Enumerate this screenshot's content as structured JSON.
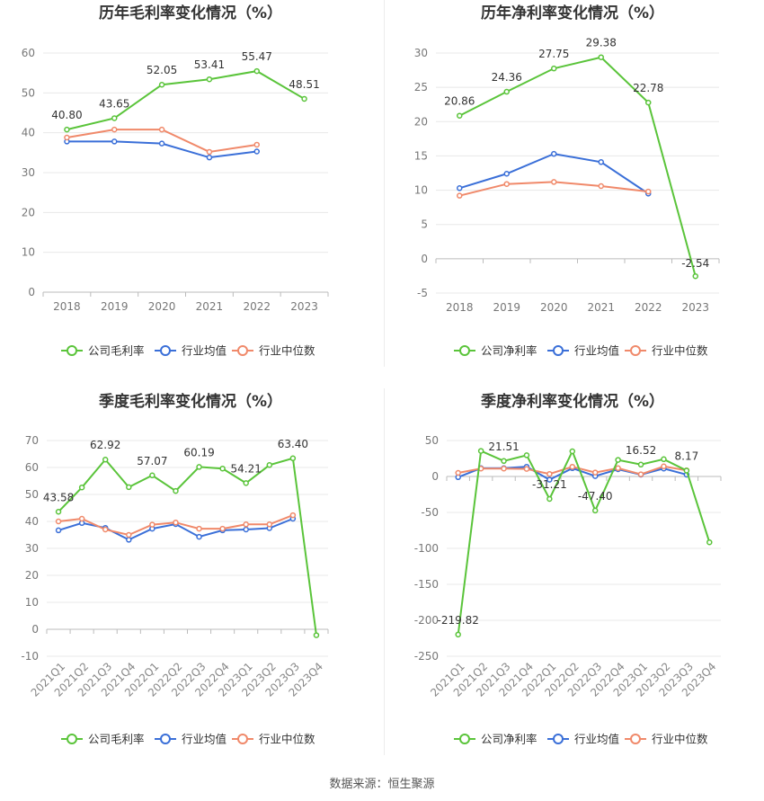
{
  "source_text": "数据来源：恒生聚源",
  "series_colors": [
    "#5ac43a",
    "#3a6fd8",
    "#f0896a"
  ],
  "chart_data": [
    {
      "type": "line",
      "title": "历年毛利率变化情况（%）",
      "categories": [
        "2018",
        "2019",
        "2020",
        "2021",
        "2022",
        "2023"
      ],
      "ylim": [
        0,
        60
      ],
      "yticks": [
        0,
        10,
        20,
        30,
        40,
        50,
        60
      ],
      "grid": true,
      "legend_position": "bottom",
      "series": [
        {
          "name": "公司毛利率",
          "values": [
            40.8,
            43.65,
            52.05,
            53.41,
            55.47,
            48.51
          ],
          "show_labels": true
        },
        {
          "name": "行业均值",
          "values": [
            37.8,
            37.8,
            37.3,
            33.8,
            35.3,
            null
          ]
        },
        {
          "name": "行业中位数",
          "values": [
            38.8,
            40.8,
            40.8,
            35.2,
            37.0,
            null
          ]
        }
      ]
    },
    {
      "type": "line",
      "title": "历年净利率变化情况（%）",
      "categories": [
        "2018",
        "2019",
        "2020",
        "2021",
        "2022",
        "2023"
      ],
      "ylim": [
        -5,
        30
      ],
      "yticks": [
        -5,
        0,
        5,
        10,
        15,
        20,
        25,
        30
      ],
      "grid": true,
      "legend_position": "bottom",
      "series": [
        {
          "name": "公司净利率",
          "values": [
            20.86,
            24.36,
            27.75,
            29.38,
            22.78,
            -2.54
          ],
          "show_labels": true
        },
        {
          "name": "行业均值",
          "values": [
            10.3,
            12.4,
            15.3,
            14.1,
            9.5,
            null
          ]
        },
        {
          "name": "行业中位数",
          "values": [
            9.2,
            10.9,
            11.2,
            10.6,
            9.8,
            null
          ]
        }
      ]
    },
    {
      "type": "line",
      "title": "季度毛利率变化情况（%）",
      "categories": [
        "2021Q1",
        "2021Q2",
        "2021Q3",
        "2021Q4",
        "2022Q1",
        "2022Q2",
        "2022Q3",
        "2022Q4",
        "2023Q1",
        "2023Q2",
        "2023Q3",
        "2023Q4"
      ],
      "ylim": [
        -10,
        70
      ],
      "yticks": [
        -10,
        0,
        10,
        20,
        30,
        40,
        50,
        60,
        70
      ],
      "grid": true,
      "legend_position": "bottom",
      "series": [
        {
          "name": "公司毛利率",
          "values": [
            43.58,
            52.6,
            62.92,
            52.7,
            57.07,
            51.3,
            60.19,
            59.6,
            54.21,
            60.9,
            63.4,
            -2.2
          ],
          "labels": [
            "43.58",
            null,
            "62.92",
            null,
            "57.07",
            null,
            "60.19",
            null,
            "54.21",
            null,
            "63.40",
            null
          ]
        },
        {
          "name": "行业均值",
          "values": [
            36.7,
            39.4,
            37.6,
            33.2,
            37.3,
            39.0,
            34.3,
            36.7,
            37.0,
            37.5,
            41.0,
            null
          ]
        },
        {
          "name": "行业中位数",
          "values": [
            40.0,
            41.0,
            37.0,
            35.0,
            38.8,
            39.6,
            37.3,
            37.3,
            38.9,
            38.9,
            42.3,
            null
          ]
        }
      ]
    },
    {
      "type": "line",
      "title": "季度净利率变化情况（%）",
      "categories": [
        "2021Q1",
        "2021Q2",
        "2021Q3",
        "2021Q4",
        "2022Q1",
        "2022Q2",
        "2022Q3",
        "2022Q4",
        "2023Q1",
        "2023Q2",
        "2023Q3",
        "2023Q4"
      ],
      "ylim": [
        -250,
        50
      ],
      "yticks": [
        -250,
        -200,
        -150,
        -100,
        -50,
        0,
        50
      ],
      "grid": true,
      "legend_position": "bottom",
      "series": [
        {
          "name": "公司净利率",
          "values": [
            -219.82,
            35.5,
            21.51,
            29.5,
            -31.21,
            35.0,
            -47.4,
            23.0,
            16.52,
            24.0,
            8.17,
            -91.5
          ],
          "labels": [
            "-219.82",
            null,
            "21.51",
            null,
            "-31.21",
            null,
            "-47.40",
            null,
            "16.52",
            null,
            "8.17",
            null
          ]
        },
        {
          "name": "行业均值",
          "values": [
            -1.0,
            11.5,
            11.5,
            13.5,
            -4.5,
            11.5,
            0.5,
            10.0,
            2.5,
            11.0,
            2.5,
            null
          ]
        },
        {
          "name": "行业中位数",
          "values": [
            5.0,
            11.0,
            11.0,
            10.5,
            3.5,
            13.5,
            5.5,
            11.5,
            3.0,
            14.0,
            8.5,
            null
          ]
        }
      ]
    }
  ]
}
